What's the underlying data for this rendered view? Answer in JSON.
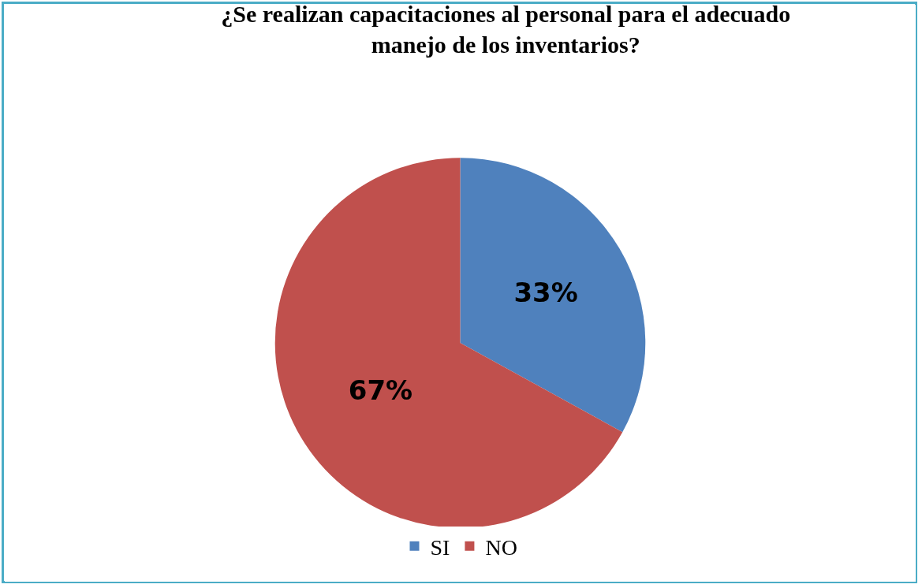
{
  "chart_data": {
    "type": "pie",
    "title": "¿Se realizan capacitaciones al personal para el adecuado manejo de los inventarios?",
    "categories": [
      "SI",
      "NO"
    ],
    "values": [
      33,
      67
    ],
    "colors": [
      "#4f81bd",
      "#c0504d"
    ],
    "value_labels": [
      "33%",
      "67%"
    ],
    "legend": "bottom"
  }
}
